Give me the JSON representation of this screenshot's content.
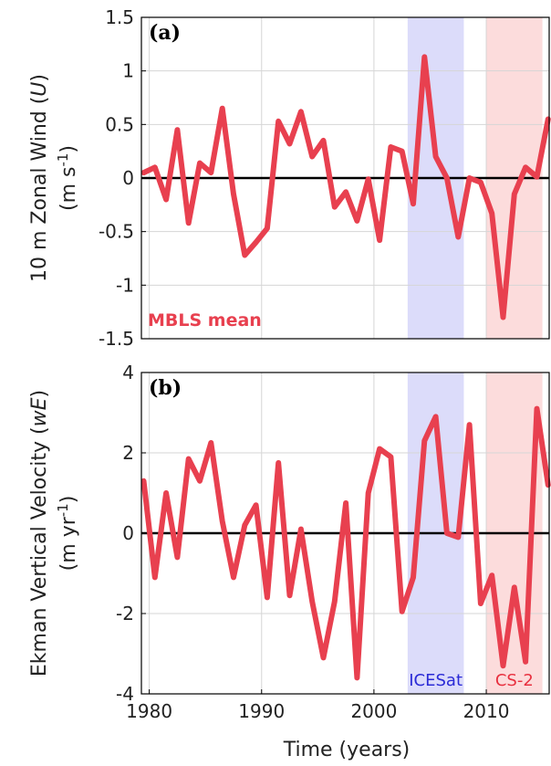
{
  "colors": {
    "series": "#e8404f",
    "icesat_band": "#dcdcfa",
    "cs2_band": "#fcdcdc",
    "icesat_text": "#2b2bd6",
    "cs2_text": "#e8303f",
    "grid": "#d6d6d6",
    "zero_line": "#000000"
  },
  "xlabel": "Time (years)",
  "chart_data": [
    {
      "type": "line",
      "panel": "(a)",
      "ylabel_line1": "10 m Zonal Wind (",
      "ylabel_var": "U",
      "ylabel_line1_end": ")",
      "ylabel_unit_pre": "(m s",
      "ylabel_unit_sup": "-1",
      "ylabel_unit_post": ")",
      "annotation": "MBLS mean",
      "xlim": [
        1979.3,
        2015.6
      ],
      "ylim": [
        -1.5,
        1.5
      ],
      "xticks": [
        1980,
        1990,
        2000,
        2010
      ],
      "yticks": [
        -1.5,
        -1,
        -0.5,
        0,
        0.5,
        1,
        1.5
      ],
      "ytick_labels": [
        "-1.5",
        "-1",
        "-0.5",
        "0",
        "0.5",
        "1",
        "1.5"
      ],
      "bands": [
        {
          "name": "ICESat",
          "x0": 2003,
          "x1": 2008
        },
        {
          "name": "CS-2",
          "x0": 2010,
          "x1": 2015
        }
      ],
      "series": [
        {
          "x": [
            1979.5,
            1980.5,
            1981.5,
            1982.5,
            1983.5,
            1984.5,
            1985.5,
            1986.5,
            1987.5,
            1988.5,
            1989.5,
            1990.5,
            1991.5,
            1992.5,
            1993.5,
            1994.5,
            1995.5,
            1996.5,
            1997.5,
            1998.5,
            1999.5,
            2000.5,
            2001.5,
            2002.5,
            2003.5,
            2004.5,
            2005.5,
            2006.5,
            2007.5,
            2008.5,
            2009.5,
            2010.5,
            2011.5,
            2012.5,
            2013.5,
            2014.5,
            2015.5
          ],
          "values": [
            0.05,
            0.1,
            -0.2,
            0.45,
            -0.42,
            0.14,
            0.05,
            0.65,
            -0.15,
            -0.72,
            -0.6,
            -0.47,
            0.53,
            0.32,
            0.62,
            0.2,
            0.35,
            -0.27,
            -0.13,
            -0.4,
            -0.01,
            -0.58,
            0.29,
            0.25,
            -0.24,
            1.13,
            0.2,
            0.0,
            -0.55,
            0.0,
            -0.04,
            -0.33,
            -1.3,
            -0.15,
            0.1,
            0.01,
            0.55
          ]
        }
      ]
    },
    {
      "type": "line",
      "panel": "(b)",
      "ylabel_line1": "Ekman Vertical Velocity (",
      "ylabel_var": "wE",
      "ylabel_line1_end": ")",
      "ylabel_unit_pre": "(m yr",
      "ylabel_unit_sup": "-1",
      "ylabel_unit_post": ")",
      "xlim": [
        1979.3,
        2015.6
      ],
      "ylim": [
        -4,
        4
      ],
      "xticks": [
        1980,
        1990,
        2000,
        2010
      ],
      "xtick_labels": [
        "1980",
        "1990",
        "2000",
        "2010"
      ],
      "yticks": [
        -4,
        -2,
        0,
        2,
        4
      ],
      "ytick_labels": [
        "-4",
        "-2",
        "0",
        "2",
        "4"
      ],
      "bands": [
        {
          "name": "ICESat",
          "x0": 2003,
          "x1": 2008
        },
        {
          "name": "CS-2",
          "x0": 2010,
          "x1": 2015
        }
      ],
      "series": [
        {
          "x": [
            1979.5,
            1980.5,
            1981.5,
            1982.5,
            1983.5,
            1984.5,
            1985.5,
            1986.5,
            1987.5,
            1988.5,
            1989.5,
            1990.5,
            1991.5,
            1992.5,
            1993.5,
            1994.5,
            1995.5,
            1996.5,
            1997.5,
            1998.5,
            1999.5,
            2000.5,
            2001.5,
            2002.5,
            2003.5,
            2004.5,
            2005.5,
            2006.5,
            2007.5,
            2008.5,
            2009.5,
            2010.5,
            2011.5,
            2012.5,
            2013.5,
            2014.5,
            2015.5
          ],
          "values": [
            1.3,
            -1.1,
            1.0,
            -0.6,
            1.85,
            1.3,
            2.25,
            0.3,
            -1.1,
            0.2,
            0.7,
            -1.6,
            1.75,
            -1.55,
            0.1,
            -1.7,
            -3.1,
            -1.7,
            0.75,
            -3.6,
            1.0,
            2.1,
            1.9,
            -1.95,
            -1.1,
            2.3,
            2.9,
            0.0,
            -0.1,
            2.7,
            -1.75,
            -1.05,
            -3.3,
            -1.35,
            -3.2,
            3.1,
            1.2
          ]
        }
      ]
    }
  ]
}
